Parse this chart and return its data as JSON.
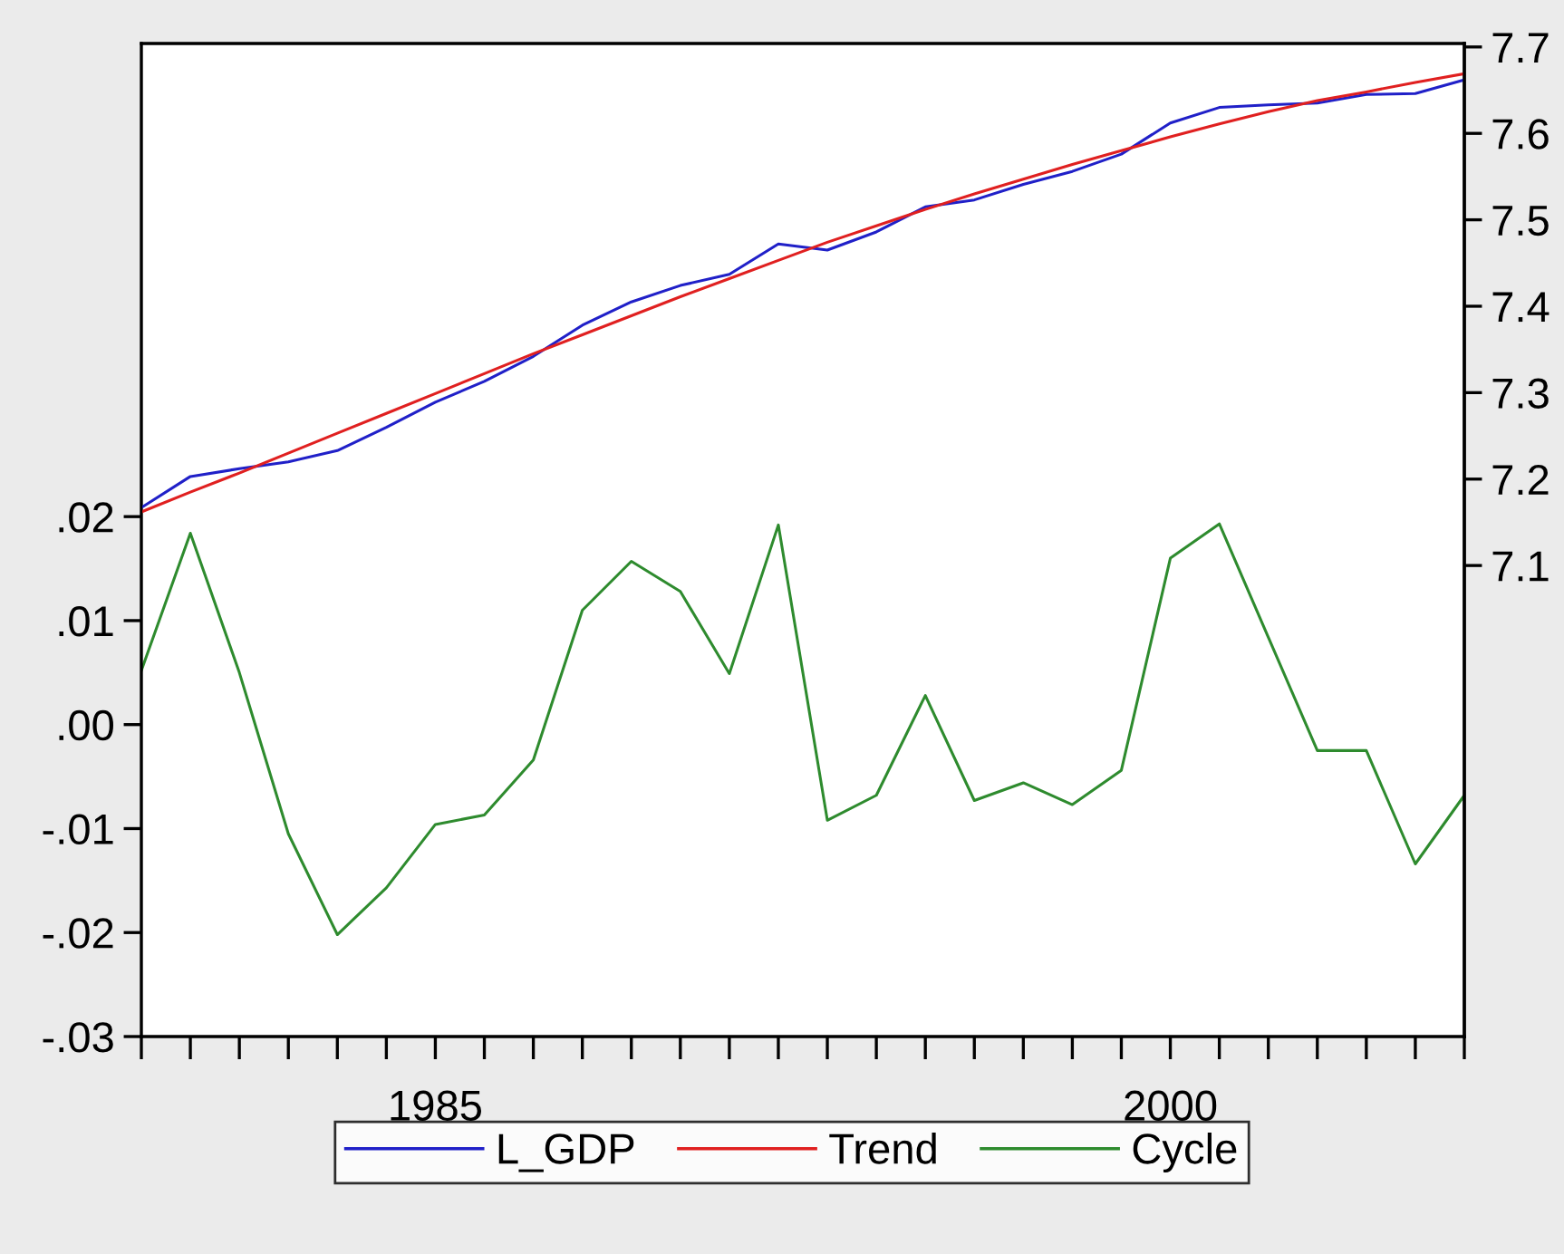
{
  "chart_data": {
    "type": "line",
    "x": [
      1979,
      1980,
      1981,
      1982,
      1983,
      1984,
      1985,
      1986,
      1987,
      1988,
      1989,
      1990,
      1991,
      1992,
      1993,
      1994,
      1995,
      1996,
      1997,
      1998,
      1999,
      2000,
      2001,
      2002,
      2003,
      2004,
      2005,
      2006
    ],
    "series": [
      {
        "name": "L_GDP",
        "color": "#2020c8",
        "axis": "y2",
        "values": [
          7.167,
          7.203,
          7.212,
          7.22,
          7.233,
          7.26,
          7.289,
          7.313,
          7.342,
          7.378,
          7.405,
          7.424,
          7.437,
          7.472,
          7.465,
          7.486,
          7.515,
          7.523,
          7.541,
          7.556,
          7.576,
          7.612,
          7.63,
          7.633,
          7.635,
          7.645,
          7.646,
          7.662
        ]
      },
      {
        "name": "Trend",
        "color": "#e02020",
        "axis": "y2",
        "values": [
          7.162,
          7.185,
          7.207,
          7.23,
          7.253,
          7.276,
          7.299,
          7.322,
          7.345,
          7.367,
          7.389,
          7.411,
          7.432,
          7.453,
          7.474,
          7.493,
          7.512,
          7.53,
          7.547,
          7.564,
          7.58,
          7.596,
          7.611,
          7.625,
          7.638,
          7.648,
          7.659,
          7.669
        ]
      },
      {
        "name": "Cycle",
        "color": "#2e8b2e",
        "axis": "y",
        "values": [
          0.0052,
          0.0184,
          0.005,
          -0.0105,
          -0.0202,
          -0.0157,
          -0.0096,
          -0.0087,
          -0.0034,
          0.011,
          0.0157,
          0.0128,
          0.0049,
          0.0192,
          -0.0092,
          -0.0068,
          0.0028,
          -0.0073,
          -0.0056,
          -0.0077,
          -0.0044,
          0.016,
          0.0193,
          0.0084,
          -0.0025,
          -0.0025,
          -0.0134,
          -0.0068
        ]
      }
    ],
    "xlim": [
      1979,
      2006
    ],
    "xticks": [
      {
        "value": 1979,
        "label": null
      },
      {
        "value": 1980,
        "label": null
      },
      {
        "value": 1981,
        "label": null
      },
      {
        "value": 1982,
        "label": null
      },
      {
        "value": 1983,
        "label": null
      },
      {
        "value": 1984,
        "label": null
      },
      {
        "value": 1985,
        "label": "1985"
      },
      {
        "value": 1986,
        "label": null
      },
      {
        "value": 1987,
        "label": null
      },
      {
        "value": 1988,
        "label": null
      },
      {
        "value": 1989,
        "label": null
      },
      {
        "value": 1990,
        "label": null
      },
      {
        "value": 1991,
        "label": null
      },
      {
        "value": 1992,
        "label": null
      },
      {
        "value": 1993,
        "label": null
      },
      {
        "value": 1994,
        "label": null
      },
      {
        "value": 1995,
        "label": null
      },
      {
        "value": 1996,
        "label": null
      },
      {
        "value": 1997,
        "label": null
      },
      {
        "value": 1998,
        "label": null
      },
      {
        "value": 1999,
        "label": null
      },
      {
        "value": 2000,
        "label": "2000"
      },
      {
        "value": 2001,
        "label": null
      },
      {
        "value": 2002,
        "label": null
      },
      {
        "value": 2003,
        "label": null
      },
      {
        "value": 2004,
        "label": null
      },
      {
        "value": 2005,
        "label": null
      },
      {
        "value": 2006,
        "label": null
      }
    ],
    "ylim": [
      -0.03,
      0.0655
    ],
    "yticks": [
      {
        "value": -0.03,
        "label": "-.03"
      },
      {
        "value": -0.02,
        "label": "-.02"
      },
      {
        "value": -0.01,
        "label": "-.01"
      },
      {
        "value": 0.0,
        "label": ".00"
      },
      {
        "value": 0.01,
        "label": ".01"
      },
      {
        "value": 0.02,
        "label": ".02"
      }
    ],
    "y2lim": [
      6.555,
      7.704
    ],
    "y2ticks": [
      7.1,
      7.2,
      7.3,
      7.4,
      7.5,
      7.6,
      7.7
    ],
    "legend": "bottom",
    "grid": false,
    "line_style": "solid"
  }
}
